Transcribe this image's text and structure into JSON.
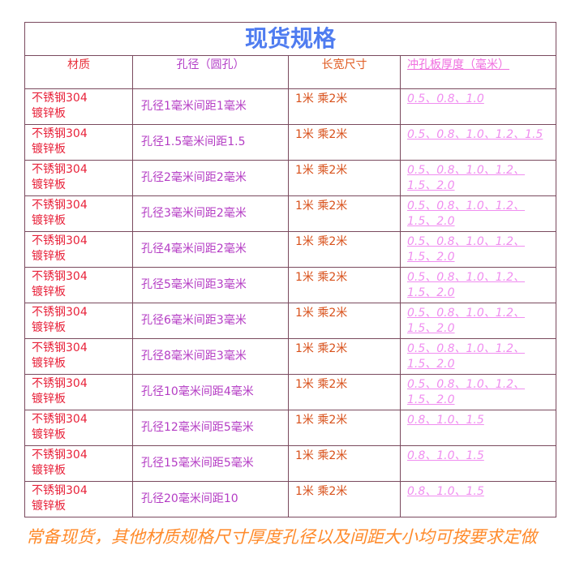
{
  "title": "现货规格",
  "headers": [
    "材质",
    "孔径（圆孔）",
    "长宽尺寸",
    "冲孔板厚度（毫米）"
  ],
  "rows": [
    {
      "material": "不锈钢304\n镀锌板",
      "hole": "孔径1毫米间距1毫米",
      "size": "1米  乘2米",
      "thickness": "0.5、0.8、1.0"
    },
    {
      "material": "不锈钢304\n镀锌板",
      "hole": "孔径1.5毫米间距1.5",
      "size": "1米  乘2米",
      "thickness": "0.5、0.8、1.0、1.2、1.5"
    },
    {
      "material": "不锈钢304\n镀锌板",
      "hole": "孔径2毫米间距2毫米",
      "size": "1米  乘2米",
      "thickness": "0.5、0.8、1.0、1.2、1.5、2.0"
    },
    {
      "material": "不锈钢304\n镀锌板",
      "hole": "孔径3毫米间距2毫米",
      "size": "1米  乘2米",
      "thickness": "0.5、0.8、1.0、1.2、1.5、2.0"
    },
    {
      "material": "不锈钢304\n镀锌板",
      "hole": "孔径4毫米间距2毫米",
      "size": "1米  乘2米",
      "thickness": "0.5、0.8、1.0、1.2、1.5、2.0"
    },
    {
      "material": "不锈钢304\n镀锌板",
      "hole": "孔径5毫米间距3毫米",
      "size": "1米  乘2米",
      "thickness": "0.5、0.8、1.0、1.2、1.5、2.0"
    },
    {
      "material": "不锈钢304\n镀锌板",
      "hole": "孔径6毫米间距3毫米",
      "size": "1米  乘2米",
      "thickness": "0.5、0.8、1.0、1.2、1.5、2.0"
    },
    {
      "material": "不锈钢304\n镀锌板",
      "hole": "孔径8毫米间距3毫米",
      "size": "1米  乘2米",
      "thickness": "0.5、0.8、1.0、1.2、1.5、2.0"
    },
    {
      "material": "不锈钢304\n镀锌板",
      "hole": "孔径10毫米间距4毫米",
      "size": "1米  乘2米",
      "thickness": "0.5、0.8、1.0、1.2、1.5、2.0"
    },
    {
      "material": "不锈钢304\n镀锌板",
      "hole": "孔径12毫米间距5毫米",
      "size": "1米  乘2米",
      "thickness": "0.8、1.0、1.5"
    },
    {
      "material": "不锈钢304\n镀锌板",
      "hole": "孔径15毫米间距5毫米",
      "size": "1米  乘2米",
      "thickness": "0.8、1.0、1.5"
    },
    {
      "material": "不锈钢304\n镀锌板",
      "hole": "孔径20毫米间距10",
      "size": "1米  乘2米",
      "thickness": "0.8、1.0、1.5"
    }
  ],
  "note": "常备现货，其他材质规格尺寸厚度孔径以及间距大小均可按要求定做",
  "colors": {
    "title": "#4f7cf0",
    "material": "#e8223a",
    "hole": "#b43cc4",
    "size": "#d8501a",
    "thickness": "#f08ef0",
    "note": "#ff8a2a",
    "border": "#7a4a5e"
  }
}
